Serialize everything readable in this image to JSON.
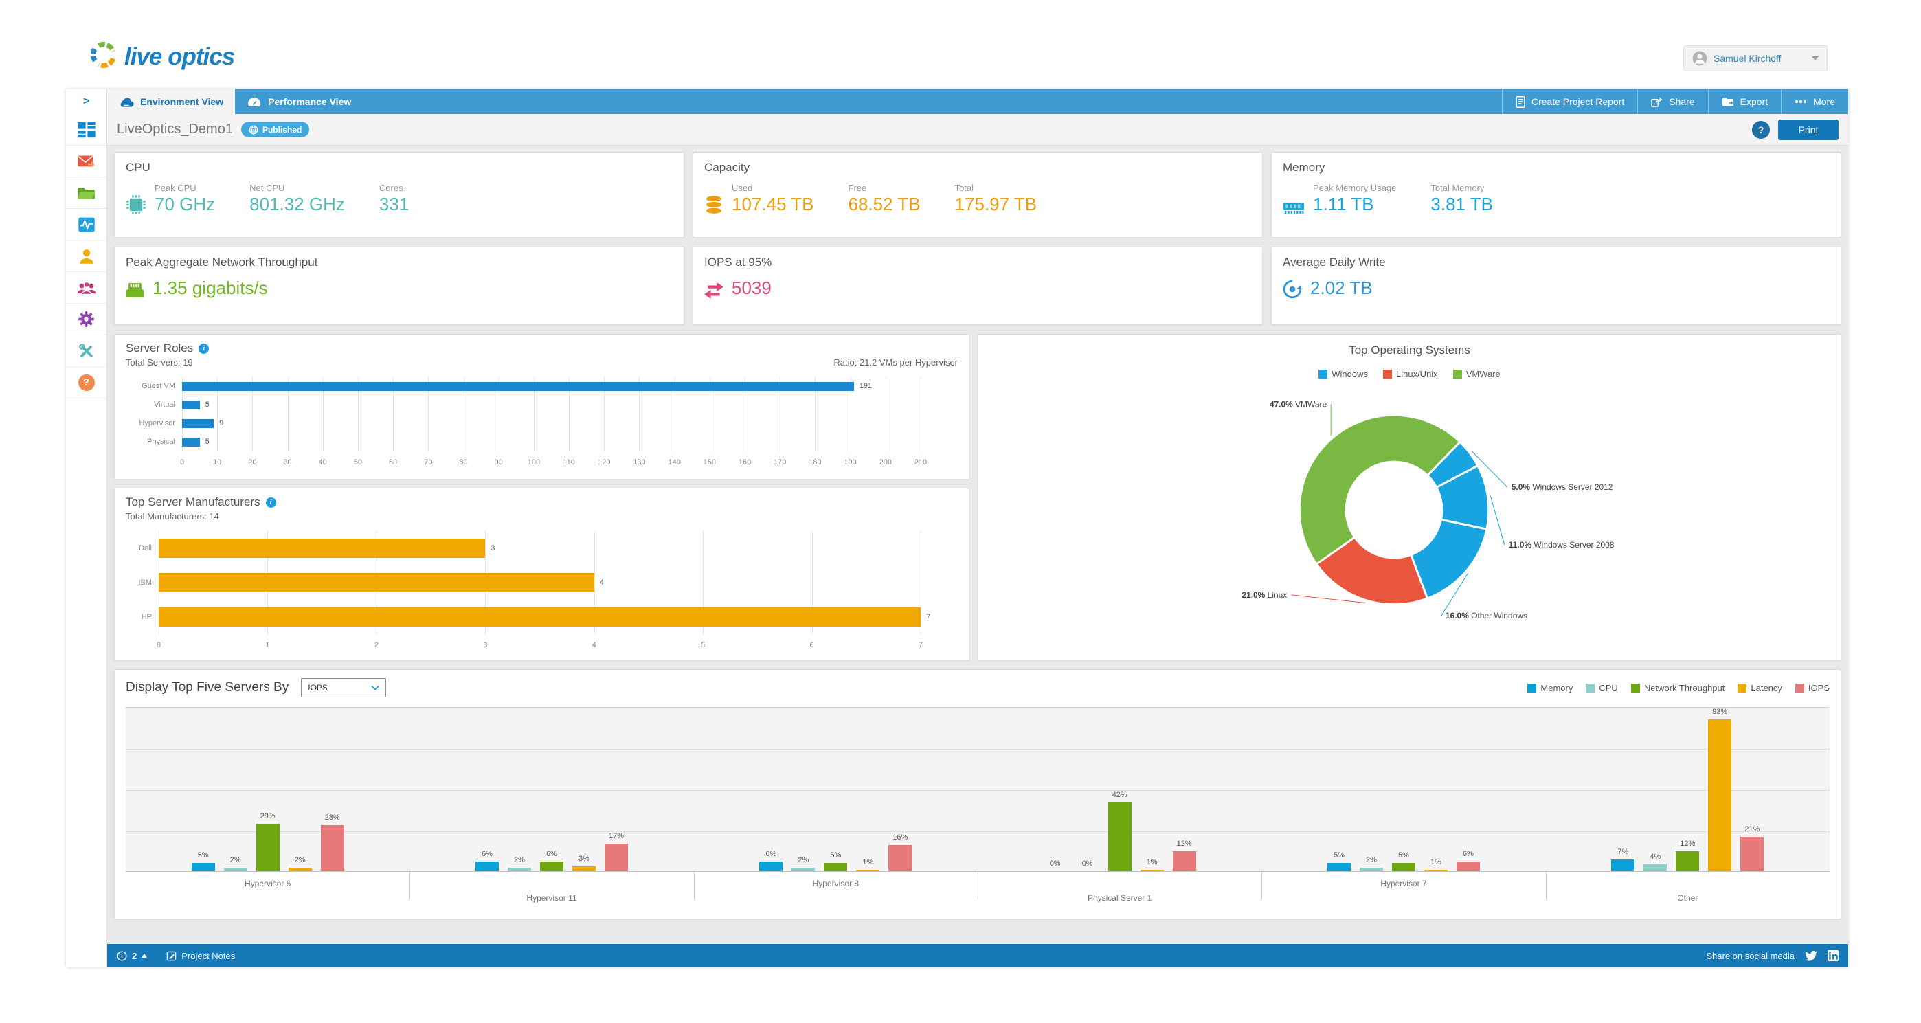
{
  "header": {
    "logo_text": "live optics",
    "user_name": "Samuel Kirchoff"
  },
  "nav": {
    "tabs": [
      {
        "label": "Environment View",
        "icon": "cloud-icon",
        "active": true
      },
      {
        "label": "Performance View",
        "icon": "gauge-icon",
        "active": false
      }
    ],
    "actions": [
      {
        "label": "Create Project Report",
        "icon": "report-icon"
      },
      {
        "label": "Share",
        "icon": "share-icon"
      },
      {
        "label": "Export",
        "icon": "export-icon"
      },
      {
        "label": "More",
        "icon": "more-icon"
      }
    ]
  },
  "title_bar": {
    "project_name": "LiveOptics_Demo1",
    "status_badge": "Published",
    "help_label": "?",
    "print_label": "Print"
  },
  "sidebar": {
    "items": [
      "dashboard",
      "mail",
      "projects",
      "health",
      "user",
      "team",
      "settings",
      "tools",
      "help"
    ]
  },
  "summary_cards": [
    {
      "title": "CPU",
      "icon": "cpu-chip-icon",
      "accent": "#52b9b4",
      "stats": [
        {
          "label": "Peak CPU",
          "value": "70 GHz"
        },
        {
          "label": "Net CPU",
          "value": "801.32 GHz"
        },
        {
          "label": "Cores",
          "value": "331"
        }
      ]
    },
    {
      "title": "Capacity",
      "icon": "database-icon",
      "accent": "#ef9d10",
      "stats": [
        {
          "label": "Used",
          "value": "107.45 TB"
        },
        {
          "label": "Free",
          "value": "68.52 TB"
        },
        {
          "label": "Total",
          "value": "175.97 TB"
        }
      ]
    },
    {
      "title": "Memory",
      "icon": "ram-icon",
      "accent": "#16a5dc",
      "stats": [
        {
          "label": "Peak Memory Usage",
          "value": "1.11 TB"
        },
        {
          "label": "Total Memory",
          "value": "3.81 TB"
        }
      ]
    },
    {
      "title": "Peak Aggregate Network Throughput",
      "icon": "ethernet-icon",
      "accent": "#72b626",
      "stats": [
        {
          "label": "",
          "value": "1.35 gigabits/s"
        }
      ]
    },
    {
      "title": "IOPS at 95%",
      "icon": "swap-arrows-icon",
      "accent": "#e0457b",
      "stats": [
        {
          "label": "",
          "value": "5039"
        }
      ]
    },
    {
      "title": "Average Daily Write",
      "icon": "write-icon",
      "accent": "#2e95d8",
      "stats": [
        {
          "label": "",
          "value": "2.02 TB"
        }
      ]
    }
  ],
  "chart_data": [
    {
      "id": "server_roles",
      "type": "bar",
      "orientation": "horizontal",
      "title": "Server Roles",
      "subtitle_left": "Total Servers: 19",
      "subtitle_right": "Ratio: 21.2 VMs per Hypervisor",
      "categories": [
        "Guest VM",
        "Virtual",
        "Hypervisor",
        "Physical"
      ],
      "values": [
        191,
        5,
        9,
        5
      ],
      "bar_color": "#1b87d1",
      "xlim": [
        0,
        210
      ],
      "xtick_step": 10,
      "grid": true
    },
    {
      "id": "top_manufacturers",
      "type": "bar",
      "orientation": "horizontal",
      "title": "Top Server Manufacturers",
      "subtitle_left": "Total Manufacturers: 14",
      "subtitle_right": "",
      "categories": [
        "Dell",
        "IBM",
        "HP"
      ],
      "values": [
        3,
        4,
        7
      ],
      "bar_color": "#f0a800",
      "xlim": [
        0,
        7
      ],
      "xtick_step": 1,
      "grid": true
    },
    {
      "id": "top_operating_systems",
      "type": "pie",
      "title": "Top Operating Systems",
      "legend": [
        {
          "label": "Windows",
          "color": "#18a3e1"
        },
        {
          "label": "Linux/Unix",
          "color": "#e8563d"
        },
        {
          "label": "VMWare",
          "color": "#78b843"
        }
      ],
      "slices": [
        {
          "label": "VMWare",
          "pct": 47.0,
          "color": "#78b843"
        },
        {
          "label": "Windows Server 2012",
          "pct": 5.0,
          "color": "#18a3e1"
        },
        {
          "label": "Windows Server 2008",
          "pct": 11.0,
          "color": "#18a3e1"
        },
        {
          "label": "Other Windows",
          "pct": 16.0,
          "color": "#18a3e1"
        },
        {
          "label": "Linux",
          "pct": 21.0,
          "color": "#e8563d"
        }
      ],
      "start_angle_deg": 235,
      "donut": true,
      "legend_position": "top-center"
    },
    {
      "id": "top_five_servers",
      "type": "bar",
      "grouped": true,
      "control_label": "Display Top Five Servers By",
      "dropdown_value": "IOPS",
      "categories": [
        "Hypervisor 6",
        "Hypervisor 11",
        "Hypervisor 8",
        "Physical Server 1",
        "Hypervisor 7",
        "Other"
      ],
      "series": [
        {
          "name": "Memory",
          "color": "#0aa2d8",
          "values": [
            5,
            6,
            6,
            0,
            5,
            7
          ]
        },
        {
          "name": "CPU",
          "color": "#8ed1ca",
          "values": [
            2,
            2,
            2,
            0,
            2,
            4
          ]
        },
        {
          "name": "Network Throughput",
          "color": "#6fa812",
          "values": [
            29,
            6,
            5,
            42,
            5,
            12
          ]
        },
        {
          "name": "Latency",
          "color": "#f0ab00",
          "values": [
            2,
            3,
            1,
            1,
            1,
            93
          ]
        },
        {
          "name": "IOPS",
          "color": "#e8797a",
          "values": [
            28,
            17,
            16,
            12,
            6,
            21
          ]
        }
      ],
      "ylim": [
        0,
        100
      ],
      "value_suffix": "%",
      "legend_position": "top-right",
      "grid": true
    }
  ],
  "footer": {
    "notification_count": "2",
    "project_notes": "Project Notes",
    "share_text": "Share on social media"
  }
}
